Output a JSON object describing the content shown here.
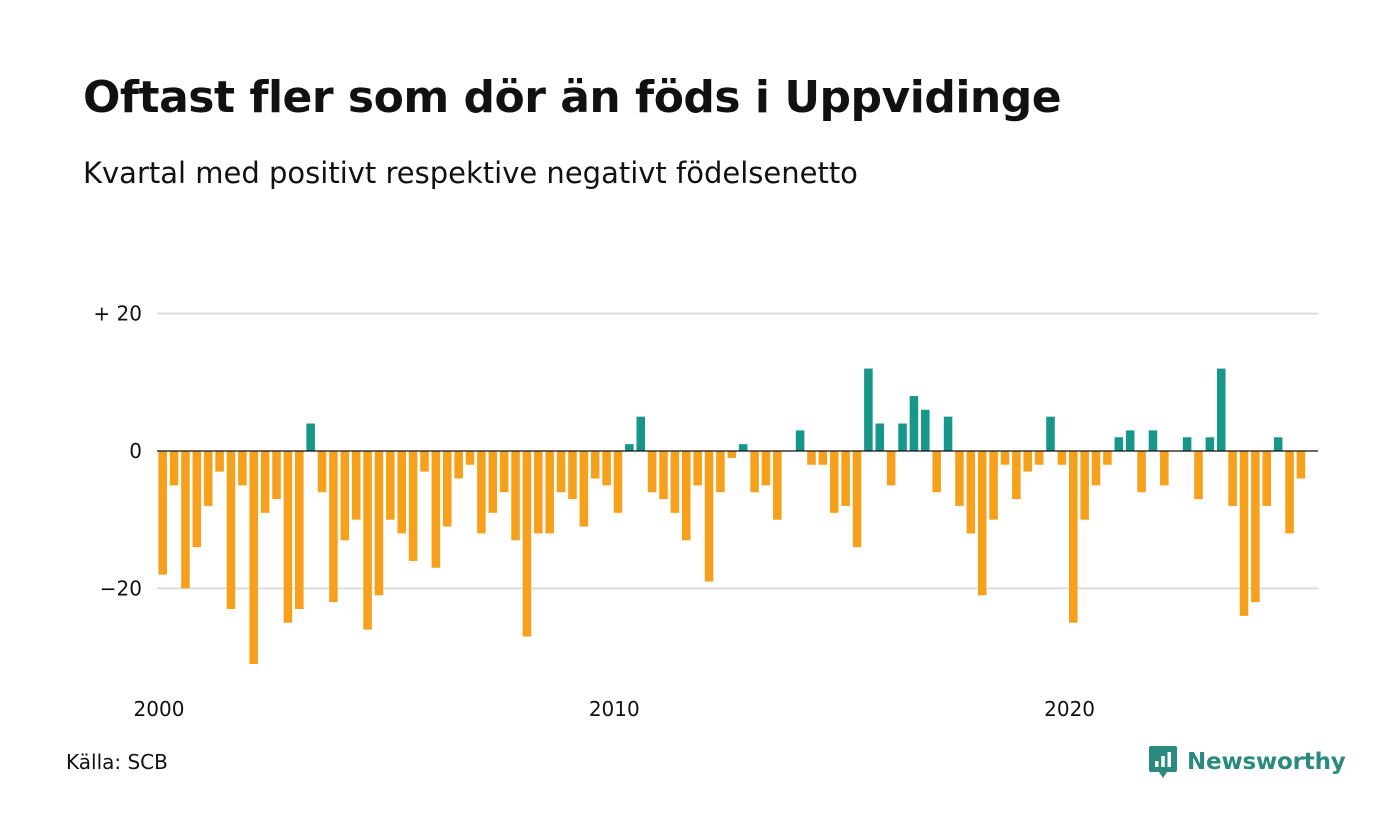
{
  "title": "Oftast fler som dör än föds i Uppvidinge",
  "subtitle": "Kvartal med positivt respektive negativt födelsenetto",
  "source": "Källa: SCB",
  "brand": {
    "name": "Newsworthy",
    "icon": "newsworthy-logo-icon",
    "color": "#2a8a7e"
  },
  "colors": {
    "positive": "#17968a",
    "negative": "#f6a01b",
    "grid": "#dddddd",
    "zero_line": "#111111"
  },
  "chart_data": {
    "type": "bar",
    "title": "Oftast fler som dör än föds i Uppvidinge",
    "subtitle": "Kvartal med positivt respektive negativt födelsenetto",
    "xlabel": "",
    "ylabel": "",
    "x_start": "2000 Q1",
    "period": "quarter",
    "xlim": [
      2000,
      2025.5
    ],
    "ylim": [
      -33,
      20
    ],
    "grid": true,
    "legend": "none",
    "yticks": [
      {
        "value": 20,
        "label": "+ 20"
      },
      {
        "value": 0,
        "label": "0"
      },
      {
        "value": -20,
        "label": "−20"
      }
    ],
    "xticks": [
      {
        "value": 2000,
        "label": "2000"
      },
      {
        "value": 2010,
        "label": "2010"
      },
      {
        "value": 2020,
        "label": "2020"
      }
    ],
    "values": [
      -18,
      -5,
      -20,
      -14,
      -8,
      -3,
      -23,
      -5,
      -31,
      -9,
      -7,
      -25,
      -23,
      4,
      -6,
      -22,
      -13,
      -10,
      -26,
      -21,
      -10,
      -12,
      -16,
      -3,
      -17,
      -11,
      -4,
      -2,
      -12,
      -9,
      -6,
      -13,
      -27,
      -12,
      -12,
      -6,
      -7,
      -11,
      -4,
      -5,
      -9,
      1,
      5,
      -6,
      -7,
      -9,
      -13,
      -5,
      -19,
      -6,
      -1,
      1,
      -6,
      -5,
      -10,
      0,
      3,
      -2,
      -2,
      -9,
      -8,
      -14,
      12,
      4,
      -5,
      4,
      8,
      6,
      -6,
      5,
      -8,
      -12,
      -21,
      -10,
      -2,
      -7,
      -3,
      -2,
      5,
      -2,
      -25,
      -10,
      -5,
      -2,
      2,
      3,
      -6,
      3,
      -5,
      0,
      2,
      -7,
      2,
      12,
      -8,
      -24,
      -22,
      -8,
      2,
      -12,
      -4
    ]
  }
}
